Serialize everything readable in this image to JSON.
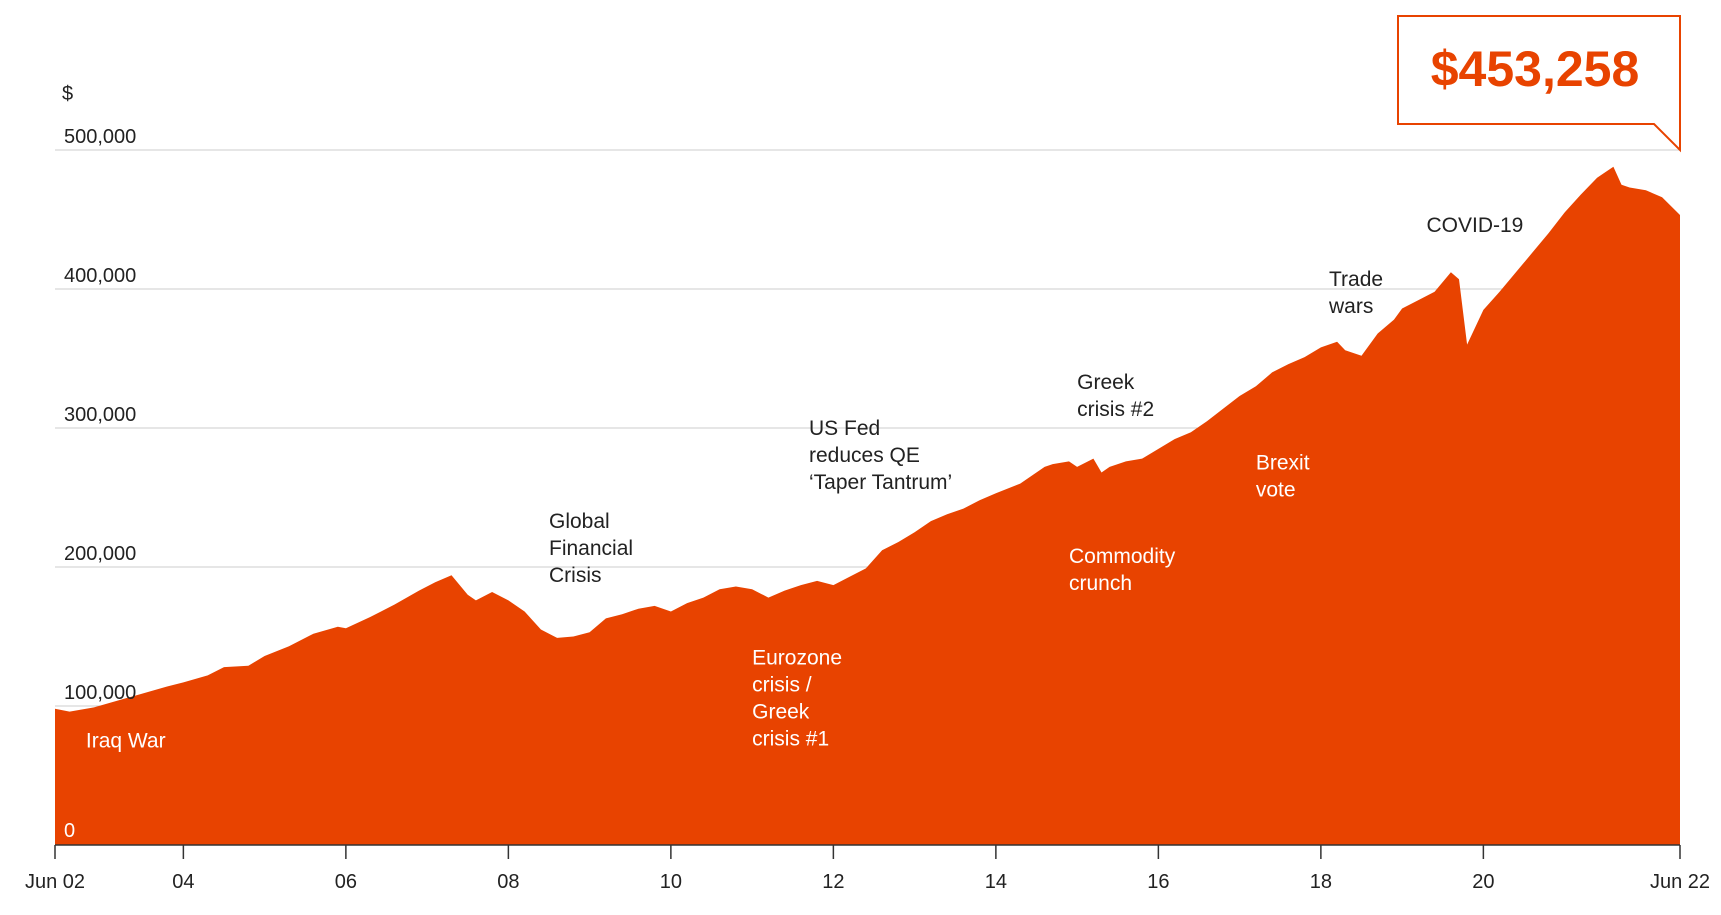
{
  "colors": {
    "area": "#E84300",
    "accent": "#E84300",
    "grid": "#cccccc",
    "text": "#222222",
    "inside_text": "#ffffff"
  },
  "chart_data": {
    "type": "area",
    "ylabel": "$",
    "ylim": [
      0,
      500000
    ],
    "y_ticks": [
      0,
      100000,
      200000,
      300000,
      400000,
      500000
    ],
    "y_tick_labels": [
      "0",
      "100,000",
      "200,000",
      "300,000",
      "400,000",
      "500,000"
    ],
    "x_ticks": [
      2002.42,
      2004,
      2006,
      2008,
      2010,
      2012,
      2014,
      2016,
      2018,
      2020,
      2022.42
    ],
    "x_tick_labels": [
      "Jun 02",
      "04",
      "06",
      "08",
      "10",
      "12",
      "14",
      "16",
      "18",
      "20",
      "Jun 22"
    ],
    "xlim": [
      2002.42,
      2022.42
    ],
    "grid": true,
    "final_value_label": "$453,258",
    "series": [
      {
        "x": [
          2002.42,
          2002.6,
          2002.9,
          2003.2,
          2003.5,
          2003.8,
          2004.0,
          2004.3,
          2004.5,
          2004.8,
          2005.0,
          2005.3,
          2005.6,
          2005.9,
          2006.0,
          2006.3,
          2006.6,
          2006.9,
          2007.1,
          2007.3,
          2007.5,
          2007.6,
          2007.8,
          2008.0,
          2008.2,
          2008.4,
          2008.6,
          2008.8,
          2009.0,
          2009.2,
          2009.4,
          2009.6,
          2009.8,
          2010.0,
          2010.2,
          2010.4,
          2010.6,
          2010.8,
          2011.0,
          2011.2,
          2011.4,
          2011.6,
          2011.8,
          2012.0,
          2012.2,
          2012.4,
          2012.6,
          2012.8,
          2013.0,
          2013.2,
          2013.4,
          2013.6,
          2013.8,
          2014.0,
          2014.3,
          2014.6,
          2014.7,
          2014.9,
          2015.0,
          2015.2,
          2015.3,
          2015.4,
          2015.6,
          2015.8,
          2016.0,
          2016.2,
          2016.4,
          2016.6,
          2016.8,
          2017.0,
          2017.2,
          2017.4,
          2017.6,
          2017.8,
          2018.0,
          2018.2,
          2018.3,
          2018.5,
          2018.7,
          2018.9,
          2019.0,
          2019.2,
          2019.4,
          2019.6,
          2019.7,
          2019.8,
          2020.0,
          2020.2,
          2020.4,
          2020.6,
          2020.8,
          2021.0,
          2021.2,
          2021.4,
          2021.5,
          2021.6,
          2021.7,
          2021.8,
          2022.0,
          2022.2,
          2022.42
        ],
        "y": [
          98000,
          96000,
          99000,
          104000,
          109000,
          114000,
          117000,
          122000,
          128000,
          129000,
          136000,
          143000,
          152000,
          157000,
          156000,
          164000,
          173000,
          183000,
          189000,
          194000,
          180000,
          176000,
          182000,
          176000,
          168000,
          155000,
          149000,
          150000,
          153000,
          163000,
          166000,
          170000,
          172000,
          168000,
          174000,
          178000,
          184000,
          186000,
          184000,
          178000,
          183000,
          187000,
          190000,
          187000,
          193000,
          199000,
          212000,
          218000,
          225000,
          233000,
          238000,
          242000,
          248000,
          253000,
          260000,
          272000,
          274000,
          276000,
          272000,
          278000,
          268000,
          272000,
          276000,
          278000,
          285000,
          292000,
          297000,
          305000,
          314000,
          323000,
          330000,
          340000,
          346000,
          351000,
          358000,
          362000,
          356000,
          352000,
          368000,
          378000,
          386000,
          392000,
          398000,
          412000,
          407000,
          360000,
          385000,
          398000,
          412000,
          426000,
          440000,
          455000,
          468000,
          480000,
          484000,
          488000,
          475000,
          473000,
          471000,
          466000,
          453258
        ]
      }
    ],
    "annotations": [
      {
        "text": [
          "Iraq War"
        ],
        "x": 2002.8,
        "y": 70000,
        "inside": true
      },
      {
        "text": [
          "Global",
          "Financial",
          "Crisis"
        ],
        "x": 2008.5,
        "y": 228000,
        "inside": false
      },
      {
        "text": [
          "Eurozone",
          "crisis /",
          "Greek",
          "crisis #1"
        ],
        "x": 2011.0,
        "y": 130000,
        "inside": true
      },
      {
        "text": [
          "US Fed",
          "reduces QE",
          "‘Taper Tantrum’"
        ],
        "x": 2011.7,
        "y": 295000,
        "inside": false
      },
      {
        "text": [
          "Greek",
          "crisis #2"
        ],
        "x": 2015.0,
        "y": 328000,
        "inside": false
      },
      {
        "text": [
          "Commodity",
          "crunch"
        ],
        "x": 2014.9,
        "y": 203000,
        "inside": true
      },
      {
        "text": [
          "Brexit",
          "vote"
        ],
        "x": 2017.2,
        "y": 270000,
        "inside": true
      },
      {
        "text": [
          "Trade",
          "wars"
        ],
        "x": 2018.1,
        "y": 402000,
        "inside": false
      },
      {
        "text": [
          "COVID-19"
        ],
        "x": 2019.3,
        "y": 441000,
        "inside": false
      }
    ]
  }
}
